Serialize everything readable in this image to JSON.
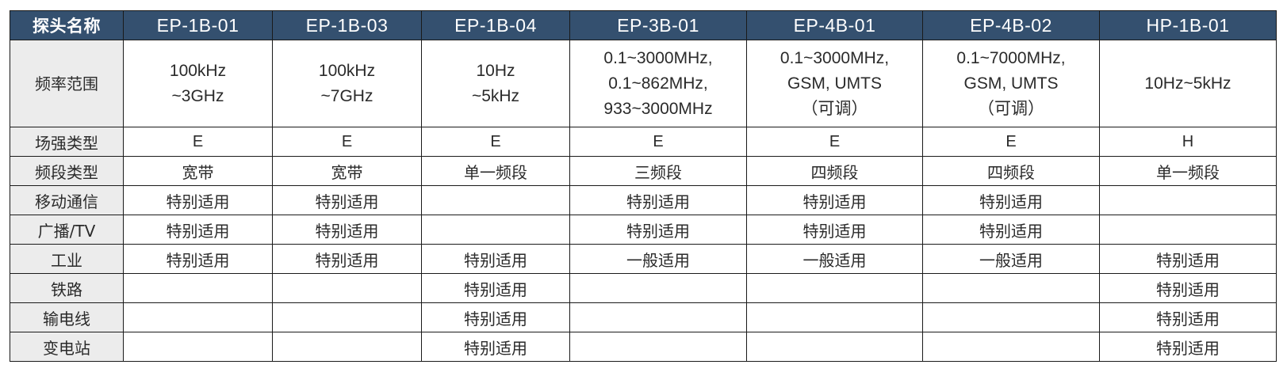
{
  "header": {
    "label": "探头名称",
    "probes": [
      "EP-1B-01",
      "EP-1B-03",
      "EP-1B-04",
      "EP-3B-01",
      "EP-4B-01",
      "EP-4B-02",
      "HP-1B-01"
    ]
  },
  "rows": [
    {
      "label": "频率范围",
      "cells": [
        [
          "100kHz",
          "~3GHz"
        ],
        [
          "100kHz",
          "~7GHz"
        ],
        [
          "10Hz",
          "~5kHz"
        ],
        [
          "0.1~3000MHz,",
          "0.1~862MHz,",
          "933~3000MHz"
        ],
        [
          "0.1~3000MHz,",
          "GSM, UMTS",
          "（可调）"
        ],
        [
          "0.1~7000MHz,",
          "GSM, UMTS",
          "（可调）"
        ],
        [
          "10Hz~5kHz"
        ]
      ]
    },
    {
      "label": "场强类型",
      "cells": [
        "E",
        "E",
        "E",
        "E",
        "E",
        "E",
        "H"
      ]
    },
    {
      "label": "频段类型",
      "cells": [
        "宽带",
        "宽带",
        "单一频段",
        "三频段",
        "四频段",
        "四频段",
        "单一频段"
      ]
    },
    {
      "label": "移动通信",
      "cells": [
        "特别适用",
        "特别适用",
        "",
        "特别适用",
        "特别适用",
        "特别适用",
        ""
      ]
    },
    {
      "label": "广播/TV",
      "cells": [
        "特别适用",
        "特别适用",
        "",
        "特别适用",
        "特别适用",
        "特别适用",
        ""
      ]
    },
    {
      "label": "工业",
      "cells": [
        "特别适用",
        "特别适用",
        "特别适用",
        "一般适用",
        "一般适用",
        "一般适用",
        "特别适用"
      ]
    },
    {
      "label": "铁路",
      "cells": [
        "",
        "",
        "特别适用",
        "",
        "",
        "",
        "特别适用"
      ]
    },
    {
      "label": "输电线",
      "cells": [
        "",
        "",
        "特别适用",
        "",
        "",
        "",
        "特别适用"
      ]
    },
    {
      "label": "变电站",
      "cells": [
        "",
        "",
        "特别适用",
        "",
        "",
        "",
        "特别适用"
      ]
    }
  ],
  "colors": {
    "header_bg": "#34506f",
    "header_text": "#ffffff",
    "row_label_bg": "#ececec",
    "border": "#1a1a1a"
  }
}
